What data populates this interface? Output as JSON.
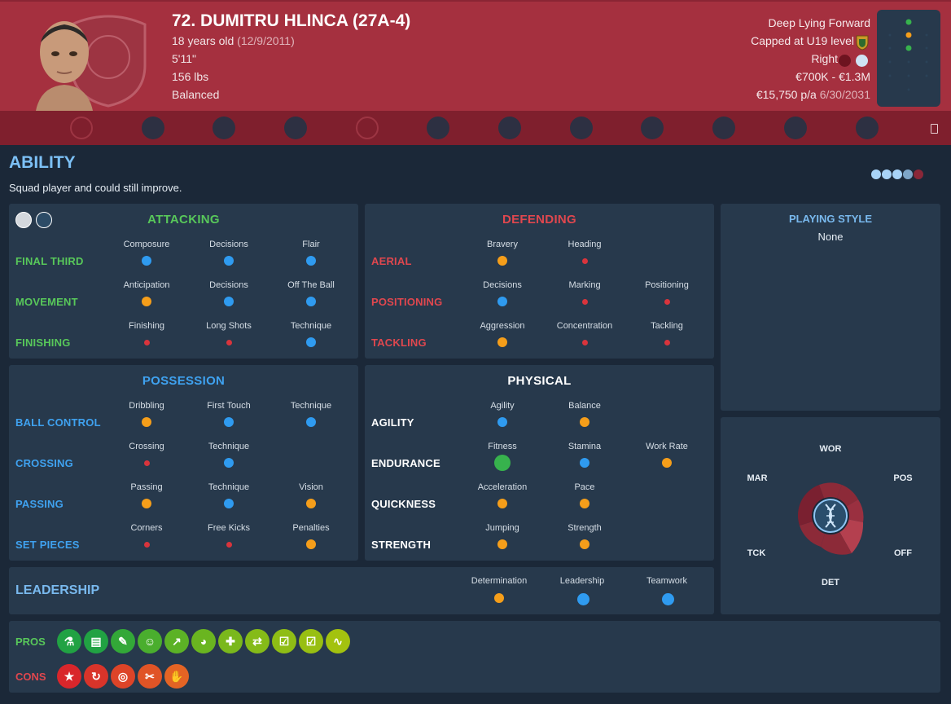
{
  "player": {
    "title": "72. DUMITRU HLINCA (27A-4)",
    "age": "18 years old",
    "dob": "(12/9/2011)",
    "height": "5'11\"",
    "weight": "156 lbs",
    "personality": "Balanced",
    "position": "Deep Lying Forward",
    "caps": "Capped at U19 level",
    "foot": "Right",
    "value": "€700K - €1.3M",
    "wage": "€15,750 p/a",
    "contract_end": "6/30/2031"
  },
  "nav_icons": [
    "club-icon",
    "training-icon",
    "medical-icon",
    "tactics-icon",
    "contract-icon",
    "scouting-icon",
    "helmet-icon",
    "history-icon",
    "boot-icon",
    "wave-icon",
    "target-icon",
    "fox-icon"
  ],
  "ability": {
    "heading": "ABILITY",
    "summary": "Squad player and could still improve.",
    "rating": 4
  },
  "sections": {
    "attacking": {
      "title": "ATTACKING",
      "rows": [
        {
          "label": "FINAL THIRD",
          "attrs": [
            {
              "name": "Composure",
              "level": "high"
            },
            {
              "name": "Decisions",
              "level": "high"
            },
            {
              "name": "Flair",
              "level": "high"
            }
          ]
        },
        {
          "label": "MOVEMENT",
          "attrs": [
            {
              "name": "Anticipation",
              "level": "mid"
            },
            {
              "name": "Decisions",
              "level": "high"
            },
            {
              "name": "Off The Ball",
              "level": "high"
            }
          ]
        },
        {
          "label": "FINISHING",
          "attrs": [
            {
              "name": "Finishing",
              "level": "low"
            },
            {
              "name": "Long Shots",
              "level": "low"
            },
            {
              "name": "Technique",
              "level": "high"
            }
          ]
        }
      ]
    },
    "defending": {
      "title": "DEFENDING",
      "rows": [
        {
          "label": "AERIAL",
          "attrs": [
            {
              "name": "Bravery",
              "level": "mid"
            },
            {
              "name": "Heading",
              "level": "low"
            }
          ]
        },
        {
          "label": "POSITIONING",
          "attrs": [
            {
              "name": "Decisions",
              "level": "high"
            },
            {
              "name": "Marking",
              "level": "low"
            },
            {
              "name": "Positioning",
              "level": "low"
            }
          ]
        },
        {
          "label": "TACKLING",
          "attrs": [
            {
              "name": "Aggression",
              "level": "mid"
            },
            {
              "name": "Concentration",
              "level": "low"
            },
            {
              "name": "Tackling",
              "level": "low"
            }
          ]
        }
      ]
    },
    "possession": {
      "title": "POSSESSION",
      "rows": [
        {
          "label": "BALL CONTROL",
          "attrs": [
            {
              "name": "Dribbling",
              "level": "mid"
            },
            {
              "name": "First Touch",
              "level": "high"
            },
            {
              "name": "Technique",
              "level": "high"
            }
          ]
        },
        {
          "label": "CROSSING",
          "attrs": [
            {
              "name": "Crossing",
              "level": "low"
            },
            {
              "name": "Technique",
              "level": "high"
            }
          ]
        },
        {
          "label": "PASSING",
          "attrs": [
            {
              "name": "Passing",
              "level": "mid"
            },
            {
              "name": "Technique",
              "level": "high"
            },
            {
              "name": "Vision",
              "level": "mid"
            }
          ]
        },
        {
          "label": "SET PIECES",
          "attrs": [
            {
              "name": "Corners",
              "level": "low"
            },
            {
              "name": "Free Kicks",
              "level": "low"
            },
            {
              "name": "Penalties",
              "level": "mid"
            }
          ]
        }
      ]
    },
    "physical": {
      "title": "PHYSICAL",
      "rows": [
        {
          "label": "AGILITY",
          "attrs": [
            {
              "name": "Agility",
              "level": "high"
            },
            {
              "name": "Balance",
              "level": "mid"
            }
          ]
        },
        {
          "label": "ENDURANCE",
          "attrs": [
            {
              "name": "Fitness",
              "level": "top"
            },
            {
              "name": "Stamina",
              "level": "high"
            },
            {
              "name": "Work Rate",
              "level": "mid"
            }
          ]
        },
        {
          "label": "QUICKNESS",
          "attrs": [
            {
              "name": "Acceleration",
              "level": "mid"
            },
            {
              "name": "Pace",
              "level": "mid"
            }
          ]
        },
        {
          "label": "STRENGTH",
          "attrs": [
            {
              "name": "Jumping",
              "level": "mid"
            },
            {
              "name": "Strength",
              "level": "mid"
            }
          ]
        }
      ]
    },
    "leadership": {
      "title": "LEADERSHIP",
      "attrs": [
        {
          "name": "Determination",
          "level": "mid"
        },
        {
          "name": "Leadership",
          "level": "high"
        },
        {
          "name": "Teamwork",
          "level": "high"
        }
      ]
    }
  },
  "playing_style": {
    "title": "PLAYING STYLE",
    "value": "None"
  },
  "radar": {
    "labels": {
      "top": "WOR",
      "top_right": "POS",
      "bottom_right": "OFF",
      "bottom": "DET",
      "bottom_left": "TCK",
      "top_left": "MAR"
    }
  },
  "pros": {
    "label": "PROS",
    "icons": [
      "flask-icon",
      "clipboard-icon",
      "pencil-icon",
      "smile-icon",
      "trend-up-icon",
      "head-icon",
      "bandage-icon",
      "handshake-icon",
      "checklist-icon",
      "checklist-icon",
      "wave-icon"
    ]
  },
  "cons": {
    "label": "CONS",
    "icons": [
      "star-icon",
      "refresh-icon",
      "target-icon",
      "broken-icon",
      "hand-icon"
    ]
  },
  "colors": {
    "header": "#a5303f",
    "panel": "#27394c",
    "background": "#1b2838",
    "blue": "#2f9bf0",
    "orange": "#f59e1a",
    "red": "#d9343c",
    "green": "#37b24d"
  }
}
